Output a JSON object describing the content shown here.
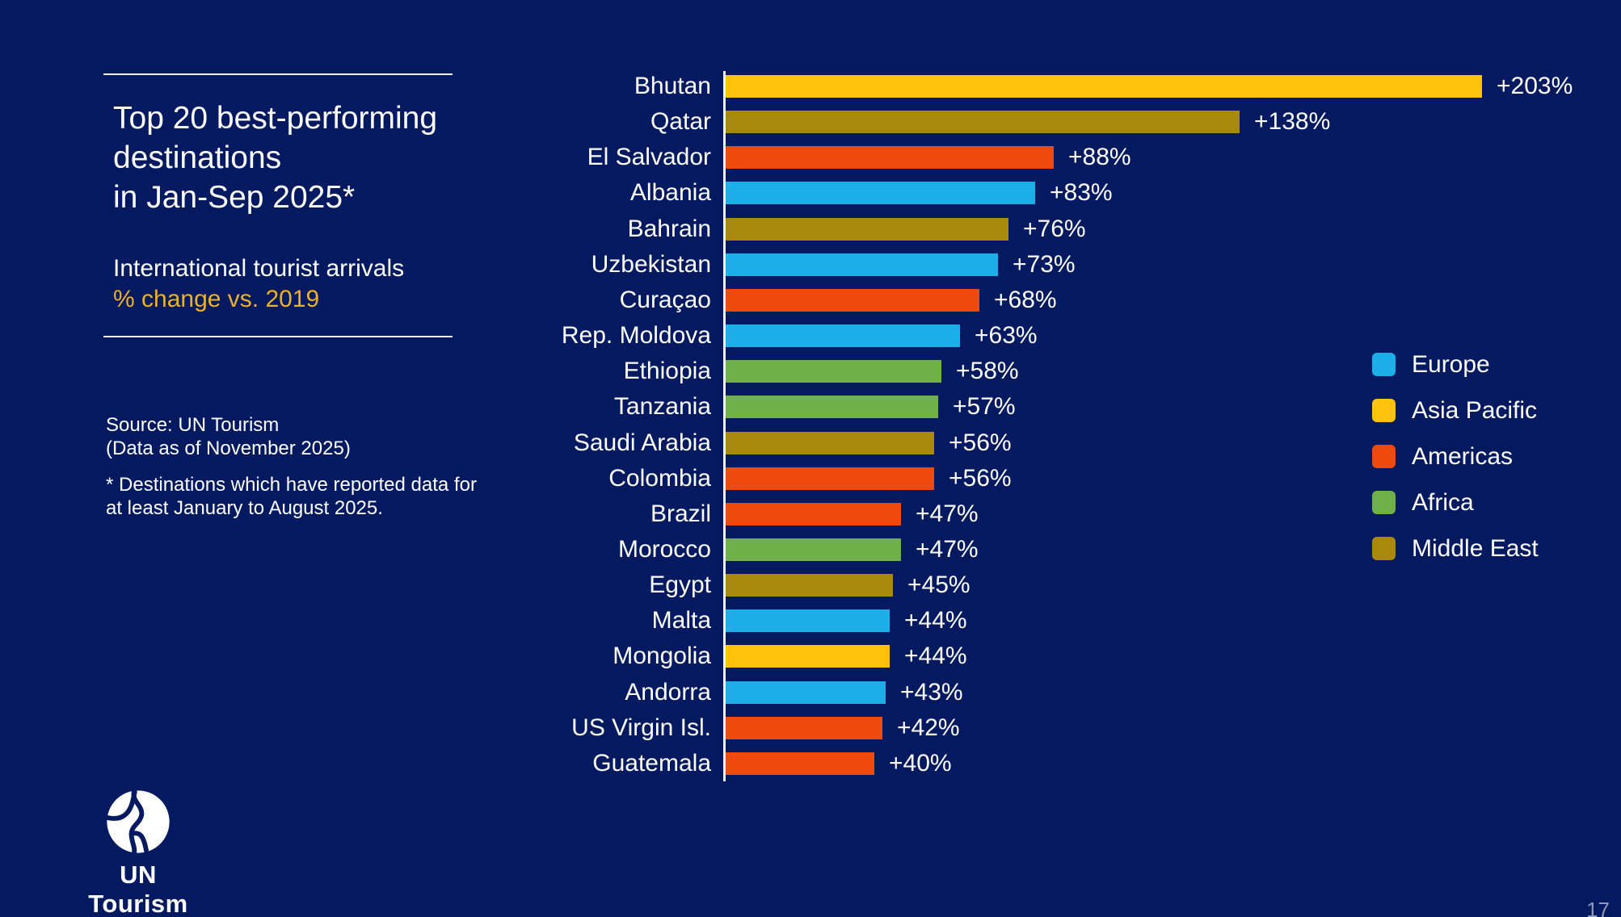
{
  "page": {
    "number": "17"
  },
  "panel": {
    "title_lines": [
      "Top 20 best-performing",
      "destinations",
      "in Jan-Sep 2025*"
    ],
    "subtitle": "International tourist arrivals",
    "subtitle_highlight": "% change vs. 2019",
    "source_lines": [
      "Source: UN Tourism",
      "(Data as of November 2025)"
    ],
    "footnote_lines": [
      "* Destinations which have reported data for",
      "at least January to August 2025."
    ]
  },
  "logo": {
    "icon": "un-tourism-globe-icon",
    "text": "UN Tourism"
  },
  "colors": {
    "background": "#041A60",
    "accent_yellow": "#EDB02A",
    "axis": "#EEF1F8",
    "page_number": "#8E97B5"
  },
  "chart_data": {
    "type": "bar",
    "orientation": "horizontal",
    "title": "Top 20 best-performing destinations in Jan-Sep 2025*",
    "metric": "International tourist arrivals, % change vs. 2019",
    "xlim": [
      0,
      203
    ],
    "grid": false,
    "legend_position": "right",
    "value_suffix": "%",
    "categories": [
      "Bhutan",
      "Qatar",
      "El Salvador",
      "Albania",
      "Bahrain",
      "Uzbekistan",
      "Curaçao",
      "Rep. Moldova",
      "Ethiopia",
      "Tanzania",
      "Saudi Arabia",
      "Colombia",
      "Brazil",
      "Morocco",
      "Egypt",
      "Malta",
      "Mongolia",
      "Andorra",
      "US Virgin Isl.",
      "Guatemala"
    ],
    "values": [
      203,
      138,
      88,
      83,
      76,
      73,
      68,
      63,
      58,
      57,
      56,
      56,
      47,
      47,
      45,
      44,
      44,
      43,
      42,
      40
    ],
    "value_labels": [
      "+203%",
      "+138%",
      "+88%",
      "+83%",
      "+76%",
      "+73%",
      "+68%",
      "+63%",
      "+58%",
      "+57%",
      "+56%",
      "+56%",
      "+47%",
      "+47%",
      "+45%",
      "+44%",
      "+44%",
      "+43%",
      "+42%",
      "+40%"
    ],
    "regions": [
      "asia_pacific",
      "middle_east",
      "americas",
      "europe",
      "middle_east",
      "europe",
      "americas",
      "europe",
      "africa",
      "africa",
      "middle_east",
      "americas",
      "americas",
      "africa",
      "middle_east",
      "europe",
      "asia_pacific",
      "europe",
      "americas",
      "americas"
    ],
    "region_colors": {
      "europe": "#1BAEE9",
      "asia_pacific": "#FFC20D",
      "americas": "#EF4A0D",
      "africa": "#6FB04A",
      "middle_east": "#A8890B"
    },
    "legend": [
      {
        "key": "europe",
        "label": "Europe"
      },
      {
        "key": "asia_pacific",
        "label": "Asia Pacific"
      },
      {
        "key": "americas",
        "label": "Americas"
      },
      {
        "key": "africa",
        "label": "Africa"
      },
      {
        "key": "middle_east",
        "label": "Middle East"
      }
    ]
  }
}
